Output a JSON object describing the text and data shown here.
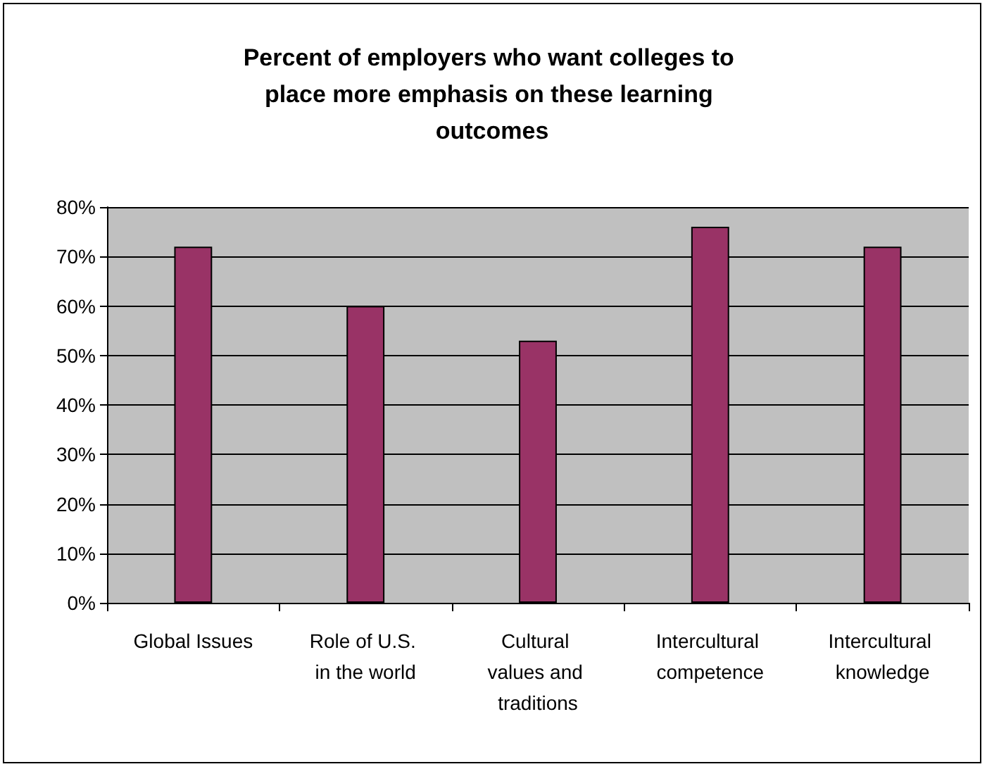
{
  "chart_data": {
    "type": "bar",
    "title": "Percent of employers who want colleges to place more emphasis on these learning outcomes",
    "categories": [
      "Global Issues",
      "Role of U.S. in the world",
      "Cultural values and traditions",
      "Intercultural competence",
      "Intercultural knowledge"
    ],
    "values": [
      72,
      60,
      53,
      76,
      72
    ],
    "color": "#993366",
    "ylim": [
      0,
      80
    ],
    "yticks": [
      {
        "value": 0,
        "label": "0%"
      },
      {
        "value": 10,
        "label": "10%"
      },
      {
        "value": 20,
        "label": "20%"
      },
      {
        "value": 30,
        "label": "30%"
      },
      {
        "value": 40,
        "label": "40%"
      },
      {
        "value": 50,
        "label": "50%"
      },
      {
        "value": 60,
        "label": "60%"
      },
      {
        "value": 70,
        "label": "70%"
      },
      {
        "value": 80,
        "label": "80%"
      }
    ],
    "grid": "y"
  }
}
